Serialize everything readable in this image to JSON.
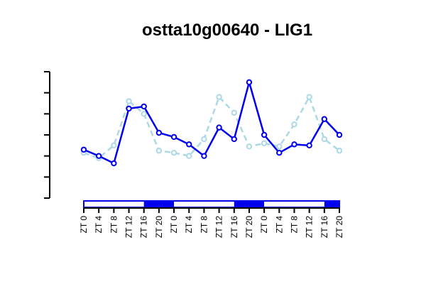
{
  "chart_data": {
    "type": "line",
    "title": "ostta10g00640 - LIG1",
    "xlabel": "",
    "ylabel": "",
    "categories": [
      "ZT 0",
      "ZT 4",
      "ZT 8",
      "ZT 12",
      "ZT 16",
      "ZT 20",
      "ZT 0",
      "ZT 4",
      "ZT 8",
      "ZT 12",
      "ZT 16",
      "ZT 20",
      "ZT 0",
      "ZT 4",
      "ZT 8",
      "ZT 12",
      "ZT 16",
      "ZT 20"
    ],
    "ylim": [
      0,
      6
    ],
    "y_ticks": [
      0,
      1,
      2,
      3,
      4,
      5,
      6
    ],
    "y_tick_labels_shown": false,
    "grid": false,
    "series": [
      {
        "style": "solid",
        "color": "#0000ee",
        "values": [
          2.3,
          2.0,
          1.65,
          4.25,
          4.35,
          3.1,
          2.9,
          2.55,
          2.0,
          3.35,
          2.8,
          5.5,
          3.0,
          2.15,
          2.55,
          2.5,
          3.75,
          3.0
        ]
      },
      {
        "style": "dashed",
        "color": "#add8e6",
        "values": [
          2.15,
          1.9,
          2.5,
          4.6,
          4.0,
          2.25,
          2.15,
          2.0,
          2.8,
          4.8,
          4.05,
          2.45,
          2.6,
          2.45,
          3.5,
          4.8,
          2.8,
          2.25
        ]
      }
    ],
    "light_dark_bar": {
      "colors": {
        "light": "#ffffff",
        "dark": "#0000ee",
        "border": "#0000ee"
      },
      "segments": [
        {
          "state": "light",
          "start": 0,
          "end": 4
        },
        {
          "state": "dark",
          "start": 4,
          "end": 6
        },
        {
          "state": "light",
          "start": 6,
          "end": 10
        },
        {
          "state": "dark",
          "start": 10,
          "end": 12
        },
        {
          "state": "light",
          "start": 12,
          "end": 16
        },
        {
          "state": "dark",
          "start": 16,
          "end": 17
        }
      ]
    }
  }
}
